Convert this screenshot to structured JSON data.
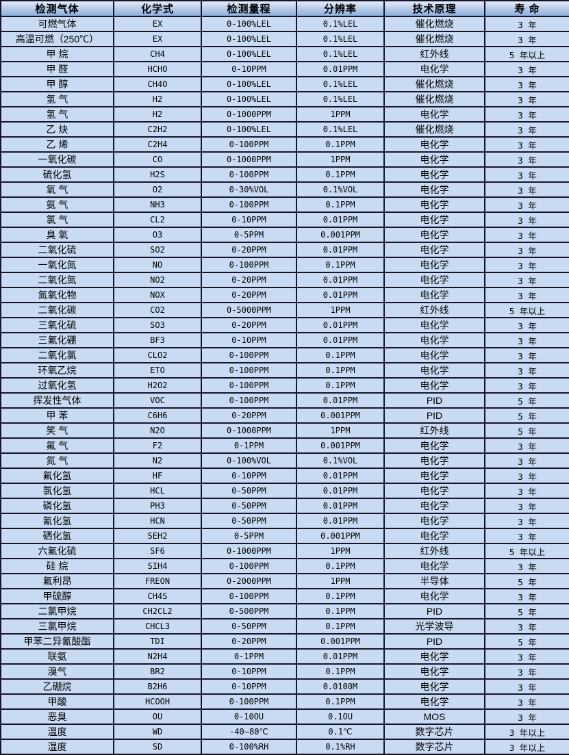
{
  "table": {
    "column_keys": [
      "gas",
      "formula",
      "range",
      "resolution",
      "principle",
      "lifespan"
    ],
    "columns": [
      "检测气体",
      "化学式",
      "检测量程",
      "分辨率",
      "技术原理",
      "寿 命"
    ],
    "rows": [
      [
        "可燃气体",
        "EX",
        "0-100%LEL",
        "0.1%LEL",
        "催化燃烧",
        "3 年"
      ],
      [
        "高温可燃（250℃）",
        "EX",
        "0-100%LEL",
        "0.1%LEL",
        "催化燃烧",
        "3 年"
      ],
      [
        "甲 烷",
        "CH4",
        "0-100%LEL",
        "0.1%LEL",
        "红外线",
        "5 年以上"
      ],
      [
        "甲 醛",
        "HCHO",
        "0-10PPM",
        "0.01PPM",
        "电化学",
        "3 年"
      ],
      [
        "甲 醇",
        "CH4O",
        "0-100%LEL",
        "0.1%LEL",
        "催化燃烧",
        "3 年"
      ],
      [
        "氢 气",
        "H2",
        "0-100%LEL",
        "0.1%LEL",
        "催化燃烧",
        "3 年"
      ],
      [
        "氢 气",
        "H2",
        "0-1000PPM",
        "1PPM",
        "电化学",
        "3 年"
      ],
      [
        "乙 炔",
        "C2H2",
        "0-100%LEL",
        "0.1%LEL",
        "催化燃烧",
        "3 年"
      ],
      [
        "乙 烯",
        "C2H4",
        "0-100PPM",
        "0.1PPM",
        "电化学",
        "3 年"
      ],
      [
        "一氧化碳",
        "CO",
        "0-1000PPM",
        "1PPM",
        "电化学",
        "3 年"
      ],
      [
        "硫化氢",
        "H2S",
        "0-100PPM",
        "0.1PPM",
        "电化学",
        "3 年"
      ],
      [
        "氧 气",
        "O2",
        "0-30%VOL",
        "0.1%VOL",
        "电化学",
        "3 年"
      ],
      [
        "氨 气",
        "NH3",
        "0-100PPM",
        "0.1PPM",
        "电化学",
        "3 年"
      ],
      [
        "氯 气",
        "CL2",
        "0-10PPM",
        "0.01PPM",
        "电化学",
        "3 年"
      ],
      [
        "臭 氧",
        "O3",
        "0-5PPM",
        "0.001PPM",
        "电化学",
        "3 年"
      ],
      [
        "二氧化硫",
        "SO2",
        "0-20PPM",
        "0.01PPM",
        "电化学",
        "3 年"
      ],
      [
        "一氧化氮",
        "NO",
        "0-100PPM",
        "0.1PPM",
        "电化学",
        "3 年"
      ],
      [
        "二氧化氮",
        "NO2",
        "0-20PPM",
        "0.01PPM",
        "电化学",
        "3 年"
      ],
      [
        "氮氧化物",
        "NOX",
        "0-20PPM",
        "0.01PPM",
        "电化学",
        "3 年"
      ],
      [
        "二氧化碳",
        "CO2",
        "0-5000PPM",
        "1PPM",
        "红外线",
        "5 年以上"
      ],
      [
        "三氧化硫",
        "SO3",
        "0-20PPM",
        "0.01PPM",
        "电化学",
        "3 年"
      ],
      [
        "三氟化硼",
        "BF3",
        "0-10PPM",
        "0.01PPM",
        "电化学",
        "3 年"
      ],
      [
        "二氧化氯",
        "CLO2",
        "0-100PPM",
        "0.1PPM",
        "电化学",
        "3 年"
      ],
      [
        "环氧乙烷",
        "ETO",
        "0-100PPM",
        "0.1PPM",
        "电化学",
        "3 年"
      ],
      [
        "过氧化氢",
        "H2O2",
        "0-100PPM",
        "0.1PPM",
        "电化学",
        "3 年"
      ],
      [
        "挥发性气体",
        "VOC",
        "0-100PPM",
        "0.01PPM",
        "PID",
        "5 年"
      ],
      [
        "甲 苯",
        "C6H6",
        "0-20PPM",
        "0.001PPM",
        "PID",
        "5 年"
      ],
      [
        "笑 气",
        "N2O",
        "0-1000PPM",
        "1PPM",
        "红外线",
        "5 年"
      ],
      [
        "氟 气",
        "F2",
        "0-1PPM",
        "0.001PPM",
        "电化学",
        "3 年"
      ],
      [
        "氮 气",
        "N2",
        "0-100%VOL",
        "0.1%VOL",
        "电化学",
        "3 年"
      ],
      [
        "氟化氢",
        "HF",
        "0-10PPM",
        "0.01PPM",
        "电化学",
        "3 年"
      ],
      [
        "氯化氢",
        "HCL",
        "0-50PPM",
        "0.01PPM",
        "电化学",
        "3 年"
      ],
      [
        "磷化氢",
        "PH3",
        "0-50PPM",
        "0.01PPM",
        "电化学",
        "3 年"
      ],
      [
        "氰化氢",
        "HCN",
        "0-50PPM",
        "0.01PPM",
        "电化学",
        "3 年"
      ],
      [
        "硒化氢",
        "SEH2",
        "0-5PPM",
        "0.001PPM",
        "电化学",
        "3 年"
      ],
      [
        "六氟化硫",
        "SF6",
        "0-1000PPM",
        "1PPM",
        "红外线",
        "5 年以上"
      ],
      [
        "硅 烷",
        "SIH4",
        "0-100PPM",
        "0.1PPM",
        "电化学",
        "3 年"
      ],
      [
        "氟利昂",
        "FREON",
        "0-2000PPM",
        "1PPM",
        "半导体",
        "5 年"
      ],
      [
        "甲硫醇",
        "CH4S",
        "0-100PPM",
        "0.1PPM",
        "电化学",
        "3 年"
      ],
      [
        "二氯甲烷",
        "CH2CL2",
        "0-500PPM",
        "0.1PPM",
        "PID",
        "5 年"
      ],
      [
        "三氯甲烷",
        "CHCL3",
        "0-50PPM",
        "0.1PPM",
        "光学波导",
        "3 年"
      ],
      [
        "甲苯二异氰酸酯",
        "TDI",
        "0-20PPM",
        "0.001PPM",
        "PID",
        "5 年"
      ],
      [
        "联氨",
        "N2H4",
        "0-1PPM",
        "0.01PPM",
        "电化学",
        "3 年"
      ],
      [
        "溴气",
        "BR2",
        "0-10PPM",
        "0.1PPM",
        "电化学",
        "3 年"
      ],
      [
        "乙硼烷",
        "B2H6",
        "0-10PPM",
        "0.0100M",
        "电化学",
        "3 年"
      ],
      [
        "甲酸",
        "HCOOH",
        "0-100PPM",
        "0.1PPM",
        "电化学",
        "3 年"
      ],
      [
        "恶臭",
        "OU",
        "0-10OU",
        "0.1OU",
        "MOS",
        "3 年"
      ],
      [
        "温度",
        "WD",
        "-40—80℃",
        "0.1℃",
        "数字芯片",
        "3 年以上"
      ],
      [
        "湿度",
        "SD",
        "0-100%RH",
        "0.1%RH",
        "数字芯片",
        "3 年以上"
      ]
    ]
  },
  "colors": {
    "header_gradient_top": "#e3ecf8",
    "header_gradient_bottom": "#8fb0dc",
    "cell_background": "#c8dbf2",
    "border": "#15152a",
    "text": "#000000"
  }
}
